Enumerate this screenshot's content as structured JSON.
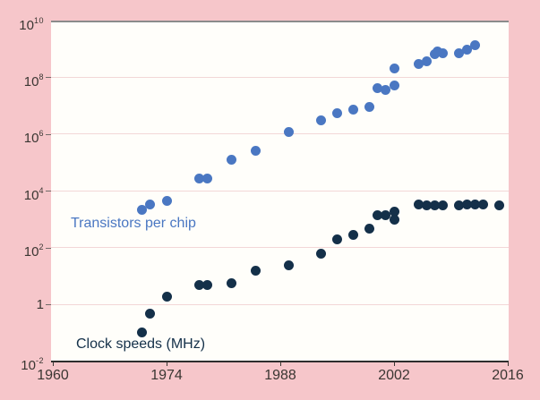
{
  "colors": {
    "background": "#f6c6ca",
    "plot_background": "#fffefa",
    "gridline": "#f3d7d7",
    "top_rule": "#8b8b8b",
    "axis_line": "#2e2e2e",
    "tick_text": "#3a3632",
    "transistors_blue": "#4a77c2",
    "clock_navy": "#143049"
  },
  "chart_data": {
    "type": "scatter",
    "title": "",
    "xlabel": "",
    "ylabel": "",
    "grid": true,
    "legend_position": "inline-annotations",
    "x_axis": {
      "range": [
        1960,
        2016
      ],
      "ticks": [
        1960,
        1974,
        1988,
        2002,
        2016
      ]
    },
    "y_axis": {
      "scale": "log",
      "range": [
        0.01,
        10000000000.0
      ],
      "ticks": [
        {
          "label": "10",
          "exp": "10",
          "value": 10000000000.0
        },
        {
          "label": "10",
          "exp": "8",
          "value": 100000000.0
        },
        {
          "label": "10",
          "exp": "6",
          "value": 1000000.0
        },
        {
          "label": "10",
          "exp": "4",
          "value": 10000.0
        },
        {
          "label": "10",
          "exp": "2",
          "value": 100
        },
        {
          "label": "1",
          "exp": "",
          "value": 1
        },
        {
          "label": "10",
          "exp": "-2",
          "value": 0.01
        }
      ]
    },
    "series": [
      {
        "name": "Transistors per chip",
        "color": "#4a77c2",
        "points": [
          [
            1971,
            2300
          ],
          [
            1972,
            3500
          ],
          [
            1974,
            4500
          ],
          [
            1978,
            29000
          ],
          [
            1979,
            29000
          ],
          [
            1982,
            130000
          ],
          [
            1985,
            270000
          ],
          [
            1989,
            1200000.0
          ],
          [
            1993,
            3100000.0
          ],
          [
            1995,
            5500000.0
          ],
          [
            1997,
            7500000.0
          ],
          [
            1999,
            9500000.0
          ],
          [
            2000,
            42000000.0
          ],
          [
            2001,
            38000000.0
          ],
          [
            2002,
            55000000.0
          ],
          [
            2002,
            220000000.0
          ],
          [
            2005,
            300000000.0
          ],
          [
            2006,
            370000000.0
          ],
          [
            2007,
            660000000.0
          ],
          [
            2007.4,
            820000000.0
          ],
          [
            2008,
            730000000.0
          ],
          [
            2010,
            740000000.0
          ],
          [
            2011,
            1000000000.0
          ],
          [
            2012,
            1400000000.0
          ]
        ]
      },
      {
        "name": "Clock speeds (MHz)",
        "color": "#143049",
        "points": [
          [
            1971,
            0.108
          ],
          [
            1972,
            0.5
          ],
          [
            1974,
            2
          ],
          [
            1978,
            5
          ],
          [
            1979,
            5
          ],
          [
            1982,
            6
          ],
          [
            1985,
            16
          ],
          [
            1989,
            25
          ],
          [
            1993,
            66
          ],
          [
            1995,
            200
          ],
          [
            1997,
            300
          ],
          [
            1999,
            500
          ],
          [
            2000,
            1500
          ],
          [
            2001,
            1400
          ],
          [
            2002,
            2000
          ],
          [
            2002,
            1000
          ],
          [
            2005,
            3500
          ],
          [
            2006,
            3300
          ],
          [
            2007,
            3300
          ],
          [
            2008,
            3200
          ],
          [
            2010,
            3300
          ],
          [
            2011,
            3400
          ],
          [
            2012,
            3400
          ],
          [
            2013,
            3500
          ],
          [
            2015,
            3300
          ]
        ]
      }
    ]
  }
}
